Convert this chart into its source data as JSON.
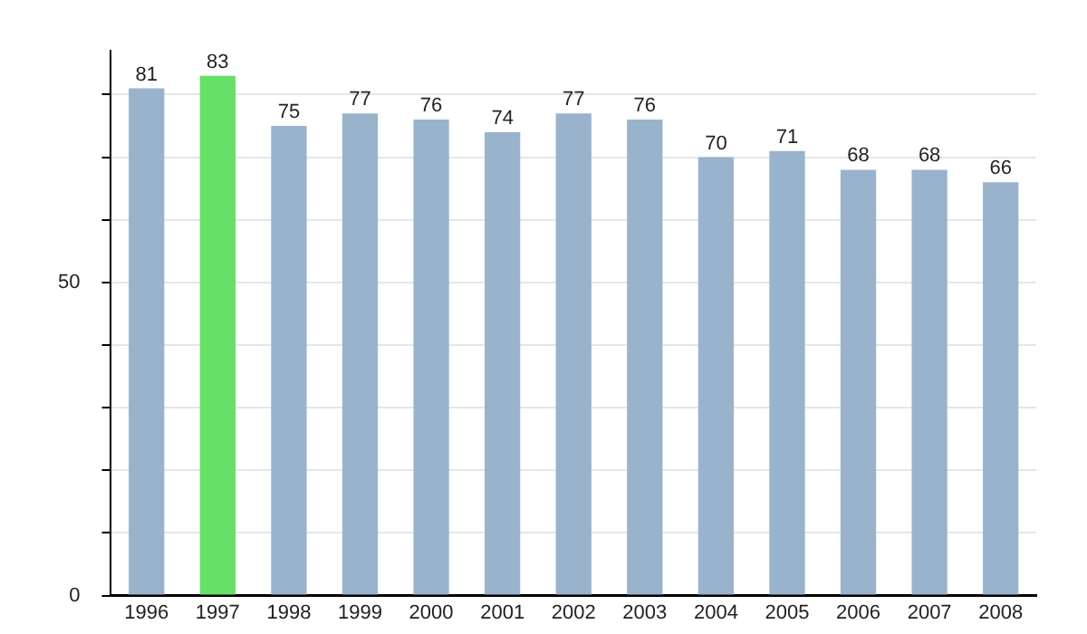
{
  "chart_data": {
    "type": "bar",
    "categories": [
      "1996",
      "1997",
      "1998",
      "1999",
      "2000",
      "2001",
      "2002",
      "2003",
      "2004",
      "2005",
      "2006",
      "2007",
      "2008"
    ],
    "values": [
      81,
      83,
      75,
      77,
      76,
      74,
      77,
      76,
      70,
      71,
      68,
      68,
      66
    ],
    "colors": [
      "#9ab3cc",
      "#66e066",
      "#9ab3cc",
      "#9ab3cc",
      "#9ab3cc",
      "#9ab3cc",
      "#9ab3cc",
      "#9ab3cc",
      "#9ab3cc",
      "#9ab3cc",
      "#9ab3cc",
      "#9ab3cc",
      "#9ab3cc"
    ],
    "ylim": [
      0,
      87
    ],
    "yticks": [
      0,
      {
        "value": 10,
        "label": null
      },
      {
        "value": 20,
        "label": null
      },
      {
        "value": 30,
        "label": null
      },
      {
        "value": 40,
        "label": null
      },
      50,
      {
        "value": 60,
        "label": null
      },
      {
        "value": 70,
        "label": null
      },
      {
        "value": 80,
        "label": null
      }
    ],
    "grid": "y",
    "data_labels": true,
    "legend": false
  }
}
